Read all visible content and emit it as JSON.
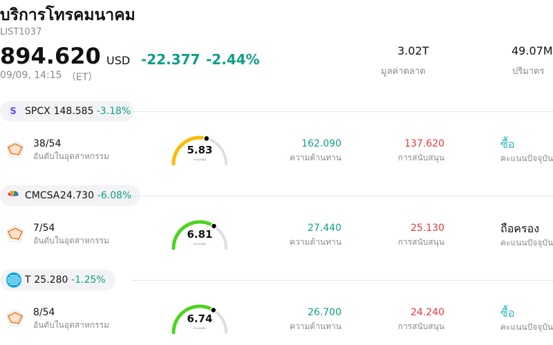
{
  "header": {
    "title": "บริการโทรคมนาคม",
    "code": "LIST1037",
    "price": "894.620",
    "currency": "USD",
    "change": "-22.377",
    "change_pct": "-2.44%",
    "time": "09/09, 14:15",
    "tz": "（ET）"
  },
  "stats": [
    {
      "value": "3.02T",
      "label": "มูลค่าตลาด"
    },
    {
      "value": "49.07M",
      "label": "ปริมาตร"
    }
  ],
  "rows": [
    {
      "ticker": "SPCX",
      "price": "148.585",
      "change": "-3.18%",
      "rank": "38/54",
      "rank_label": "อันดับในอุตสาหกรรม",
      "score": 5.83,
      "score_label": "คะแนนหุ้น",
      "resistance": "162.090",
      "resistance_label": "ความต้านทาน",
      "support": "137.620",
      "support_label": "การสนับสนุน",
      "rating": "ซื้อ",
      "rating_label": "คะแนนปัจจุบัน"
    },
    {
      "ticker": "CMCSA",
      "price": "24.730",
      "change": "-6.08%",
      "rank": "7/54",
      "rank_label": "อันดับในอุตสาหกรรม",
      "score": 6.81,
      "score_label": "คะแนนหุ้น",
      "resistance": "27.440",
      "resistance_label": "ความต้านทาน",
      "support": "25.130",
      "support_label": "การสนับสนุน",
      "rating": "ถือครอง",
      "rating_label": "คะแนนปัจจุบัน"
    },
    {
      "ticker": "T",
      "price": "25.280",
      "change": "-1.25%",
      "rank": "8/54",
      "rank_label": "อันดับในอุตสาหกรรม",
      "score": 6.74,
      "score_label": "คะแนนหุ้น",
      "resistance": "26.700",
      "resistance_label": "ความต้านทาน",
      "support": "24.240",
      "support_label": "การสนับสนุน",
      "rating": "ซื้อ",
      "rating_label": "คะแนนปัจจุบัน"
    }
  ]
}
